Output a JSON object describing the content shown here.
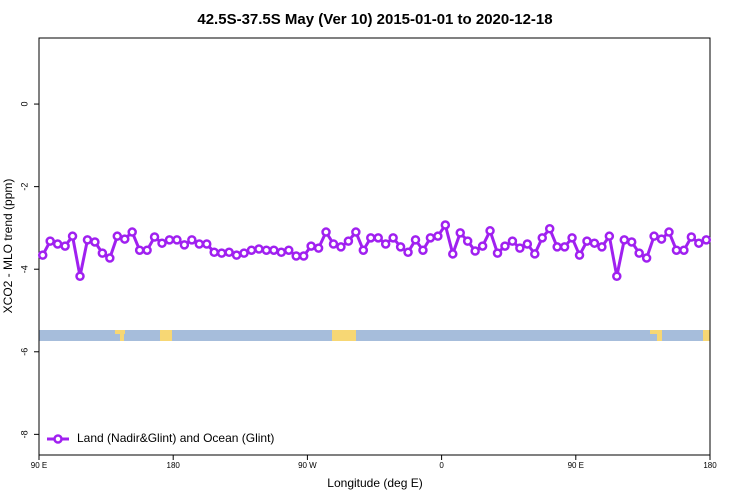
{
  "chart_data": {
    "type": "line",
    "title": "42.5S-37.5S May (Ver 10)   2015-01-01 to 2020-12-18",
    "x_label": "Longitude (deg E)",
    "y_label": "XCO2 - MLO trend (ppm)",
    "xlim": [
      90,
      540
    ],
    "ylim": [
      -8.5,
      1.6
    ],
    "xticks": [
      {
        "value": 90,
        "label": "90 E"
      },
      {
        "value": 180,
        "label": "180"
      },
      {
        "value": 270,
        "label": "90 W"
      },
      {
        "value": 360,
        "label": "0"
      },
      {
        "value": 450,
        "label": "90 E"
      },
      {
        "value": 540,
        "label": "180"
      }
    ],
    "yticks": [
      -8,
      -6,
      -4,
      -2,
      0
    ],
    "legend": "bottom-left",
    "x": [
      92.5,
      97.5,
      102.5,
      107.5,
      112.5,
      117.5,
      122.5,
      127.5,
      132.5,
      137.5,
      142.5,
      147.5,
      152.5,
      157.5,
      162.5,
      167.5,
      172.5,
      177.5,
      182.5,
      187.5,
      192.5,
      197.5,
      202.5,
      207.5,
      212.5,
      217.5,
      222.5,
      227.5,
      232.5,
      237.5,
      242.5,
      247.5,
      252.5,
      257.5,
      262.5,
      267.5,
      272.5,
      277.5,
      282.5,
      287.5,
      292.5,
      297.5,
      302.5,
      307.5,
      312.5,
      317.5,
      322.5,
      327.5,
      332.5,
      337.5,
      342.5,
      347.5,
      352.5,
      357.5,
      362.5,
      367.5,
      372.5,
      377.5,
      382.5,
      387.5,
      392.5,
      397.5,
      402.5,
      407.5,
      412.5,
      417.5,
      422.5,
      427.5,
      432.5,
      437.5,
      442.5,
      447.5,
      452.5,
      457.5,
      462.5,
      467.5,
      472.5,
      477.5,
      482.5,
      487.5,
      492.5,
      497.5,
      502.5,
      507.5,
      512.5,
      517.5,
      522.5,
      527.5,
      532.5,
      537.5
    ],
    "series": [
      {
        "name": "Land (Nadir&Glint) and Ocean (Glint)",
        "color": "#a020f0",
        "values": [
          -3.66,
          -3.32,
          -3.39,
          -3.44,
          -3.2,
          -4.17,
          -3.29,
          -3.34,
          -3.61,
          -3.73,
          -3.2,
          -3.27,
          -3.1,
          -3.54,
          -3.54,
          -3.22,
          -3.37,
          -3.29,
          -3.29,
          -3.41,
          -3.29,
          -3.39,
          -3.39,
          -3.59,
          -3.61,
          -3.59,
          -3.66,
          -3.61,
          -3.54,
          -3.51,
          -3.54,
          -3.54,
          -3.59,
          -3.54,
          -3.68,
          -3.68,
          -3.44,
          -3.49,
          -3.1,
          -3.39,
          -3.46,
          -3.32,
          -3.1,
          -3.54,
          -3.24,
          -3.24,
          -3.39,
          -3.24,
          -3.46,
          -3.59,
          -3.29,
          -3.54,
          -3.24,
          -3.2,
          -2.93,
          -3.63,
          -3.12,
          -3.32,
          -3.56,
          -3.44,
          -3.07,
          -3.61,
          -3.44,
          -3.32,
          -3.49,
          -3.39,
          -3.63,
          -3.24,
          -3.02,
          -3.46,
          -3.46,
          -3.24,
          -3.66,
          -3.32,
          -3.37,
          -3.46,
          -3.2,
          -4.17,
          -3.29,
          -3.34,
          -3.61,
          -3.73,
          -3.2,
          -3.27,
          -3.1,
          -3.54,
          -3.54,
          -3.22,
          -3.37,
          -3.29
        ]
      }
    ]
  }
}
